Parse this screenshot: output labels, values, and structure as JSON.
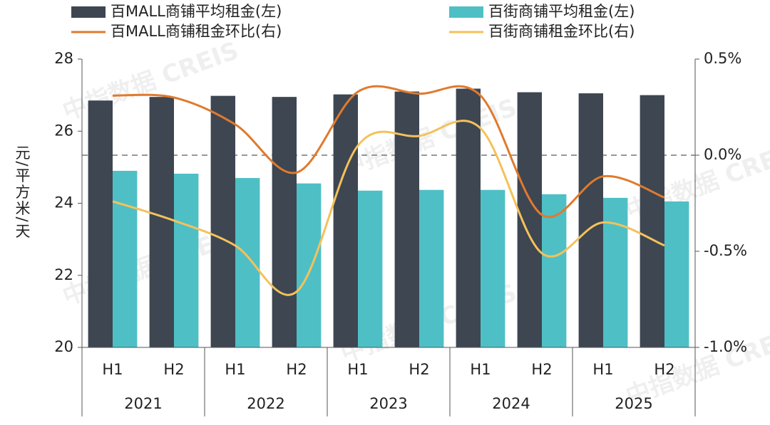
{
  "chart_data": {
    "type": "bar-line",
    "y_label": "元/平方米/天",
    "watermark": "中指数据 CREIS",
    "categories": [
      "H1",
      "H2",
      "H1",
      "H2",
      "H1",
      "H2",
      "H1",
      "H2",
      "H1",
      "H2"
    ],
    "x_groups": [
      "2021",
      "2022",
      "2023",
      "2024",
      "2025"
    ],
    "series": [
      {
        "name": "百MALL商铺平均租金(左)",
        "kind": "bar",
        "color": "#3d4651",
        "values": [
          26.85,
          26.95,
          26.98,
          26.95,
          27.02,
          27.1,
          27.18,
          27.08,
          27.05,
          27.0
        ]
      },
      {
        "name": "百街商铺平均租金(左)",
        "kind": "bar",
        "color": "#4fbfc6",
        "values": [
          24.9,
          24.82,
          24.7,
          24.55,
          24.35,
          24.37,
          24.37,
          24.25,
          24.15,
          24.05
        ]
      },
      {
        "name": "百MALL商铺租金环比(右)",
        "kind": "line",
        "axis": "y2",
        "color": "#e07a2e",
        "values": [
          0.31,
          0.3,
          0.16,
          -0.09,
          0.33,
          0.32,
          0.31,
          -0.31,
          -0.11,
          -0.22
        ]
      },
      {
        "name": "百街商铺租金环比(右)",
        "kind": "line",
        "axis": "y2",
        "color": "#f5c15a",
        "values": [
          -0.24,
          -0.34,
          -0.47,
          -0.71,
          0.05,
          0.1,
          0.14,
          -0.51,
          -0.35,
          -0.47
        ]
      }
    ],
    "ylim": [
      20,
      28
    ],
    "yticks": [
      20,
      22,
      24,
      26,
      28
    ],
    "y2lim": [
      -1.0,
      0.5
    ],
    "y2ticks": [
      {
        "value": -1.0,
        "label": "-1.0%"
      },
      {
        "value": -0.5,
        "label": "-0.5%"
      },
      {
        "value": 0,
        "label": "0.0%"
      },
      {
        "value": 0.5,
        "label": "0.5%"
      }
    ]
  }
}
